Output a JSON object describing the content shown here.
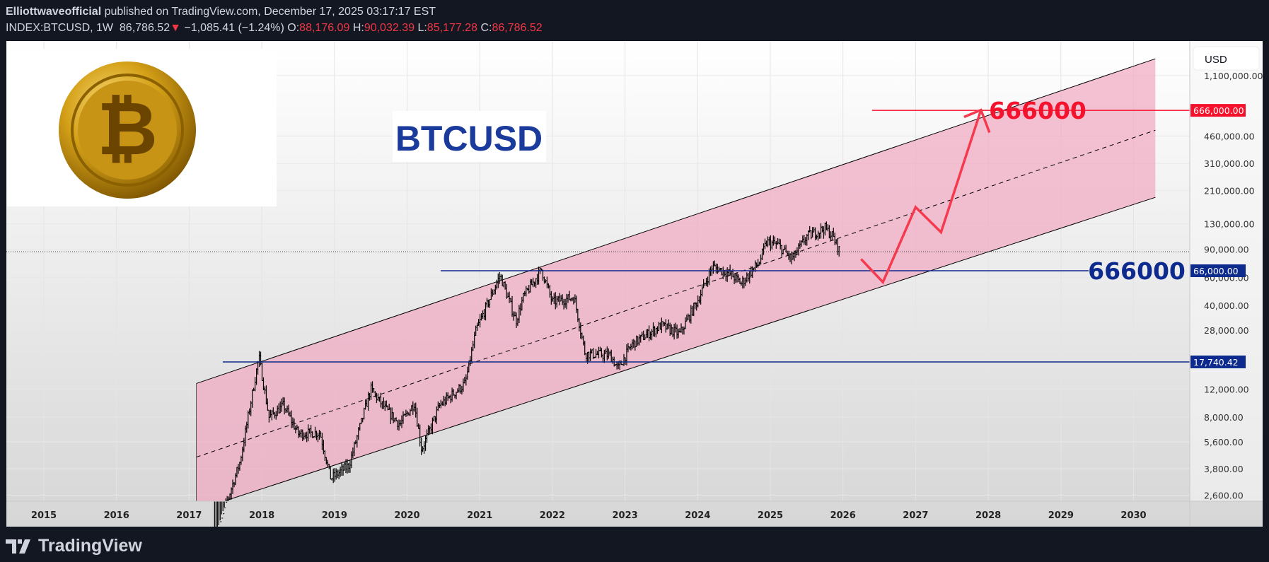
{
  "header": {
    "author": "Elliottwaveofficial",
    "published": " published on TradingView.com, December 17, 2025 03:17:17 EST",
    "symbol": "INDEX:BTCUSD, 1W",
    "last": "86,786.52",
    "change": "−1,085.41 (−1.24%)",
    "o_label": "O:",
    "o": "88,176.09",
    "h_label": "H:",
    "h": "90,032.39",
    "l_label": "L:",
    "l": "85,177.28",
    "c_label": "C:",
    "c": "86,786.52"
  },
  "chart": {
    "title_text": "BTCUSD",
    "target_red_text": "666000",
    "target_blue_text": "666000",
    "currency_button": "USD",
    "price_tags": [
      {
        "label": "666,000.00",
        "value": 666000,
        "color": "#f5122c"
      },
      {
        "label": "66,000.00",
        "value": 66000,
        "color": "#0d2a8f"
      },
      {
        "label": "17,740.42",
        "value": 17740.42,
        "color": "#0d2a8f"
      }
    ],
    "colors": {
      "channel_fill": "#f0a8c0",
      "red": "#f5122c",
      "blue": "#0d2a8f",
      "candle": "#000000"
    }
  },
  "chart_data": {
    "type": "candlestick",
    "scale": "log",
    "x_ticks": [
      "2015",
      "2016",
      "2017",
      "2018",
      "2019",
      "2020",
      "2021",
      "2022",
      "2023",
      "2024",
      "2025",
      "2026",
      "2027",
      "2028",
      "2029",
      "2030"
    ],
    "y_ticks": [
      {
        "label": "1,100,000.00",
        "value": 1100000
      },
      {
        "label": "460,000.00",
        "value": 460000
      },
      {
        "label": "310,000.00",
        "value": 310000
      },
      {
        "label": "210,000.00",
        "value": 210000
      },
      {
        "label": "130,000.00",
        "value": 130000
      },
      {
        "label": "90,000.00",
        "value": 90000
      },
      {
        "label": "60,000.00",
        "value": 60000
      },
      {
        "label": "40,000.00",
        "value": 40000
      },
      {
        "label": "28,000.00",
        "value": 28000
      },
      {
        "label": "12,000.00",
        "value": 12000
      },
      {
        "label": "8,000.00",
        "value": 8000
      },
      {
        "label": "5,600.00",
        "value": 5600
      },
      {
        "label": "3,800.00",
        "value": 3800
      },
      {
        "label": "2,600.00",
        "value": 2600
      }
    ],
    "current_price": 86786.52,
    "price_path": [
      [
        2017.35,
        1300
      ],
      [
        2017.55,
        2600
      ],
      [
        2017.7,
        4200
      ],
      [
        2017.96,
        19000
      ],
      [
        2018.1,
        8000
      ],
      [
        2018.3,
        9500
      ],
      [
        2018.5,
        6300
      ],
      [
        2018.8,
        6400
      ],
      [
        2018.95,
        3300
      ],
      [
        2019.2,
        4000
      ],
      [
        2019.5,
        12000
      ],
      [
        2019.7,
        9000
      ],
      [
        2019.9,
        7200
      ],
      [
        2020.1,
        9800
      ],
      [
        2020.2,
        5000
      ],
      [
        2020.45,
        9500
      ],
      [
        2020.8,
        13000
      ],
      [
        2020.95,
        28000
      ],
      [
        2021.28,
        62000
      ],
      [
        2021.5,
        32000
      ],
      [
        2021.6,
        45000
      ],
      [
        2021.85,
        67000
      ],
      [
        2022.0,
        42000
      ],
      [
        2022.3,
        45000
      ],
      [
        2022.45,
        20000
      ],
      [
        2022.8,
        19500
      ],
      [
        2022.9,
        16000
      ],
      [
        2023.1,
        23000
      ],
      [
        2023.5,
        30000
      ],
      [
        2023.75,
        26500
      ],
      [
        2024.0,
        43000
      ],
      [
        2024.2,
        70000
      ],
      [
        2024.45,
        63000
      ],
      [
        2024.6,
        55000
      ],
      [
        2024.85,
        75000
      ],
      [
        2024.95,
        100000
      ],
      [
        2025.1,
        96000
      ],
      [
        2025.3,
        78000
      ],
      [
        2025.5,
        108000
      ],
      [
        2025.75,
        122000
      ],
      [
        2025.85,
        110000
      ],
      [
        2025.96,
        86786
      ]
    ],
    "channel": {
      "upper": [
        [
          2017.1,
          13000
        ],
        [
          2030.3,
          1400000
        ]
      ],
      "middle": [
        [
          2017.1,
          4500
        ],
        [
          2030.3,
          500000
        ]
      ],
      "lower": [
        [
          2017.5,
          2400
        ],
        [
          2030.3,
          190000
        ]
      ]
    },
    "horizontal_levels": [
      666000,
      66000,
      17740.42
    ],
    "projection_path": [
      [
        2026.25,
        78000
      ],
      [
        2026.55,
        56000
      ],
      [
        2027.0,
        165000
      ],
      [
        2027.35,
        115000
      ],
      [
        2027.9,
        670000
      ]
    ]
  }
}
